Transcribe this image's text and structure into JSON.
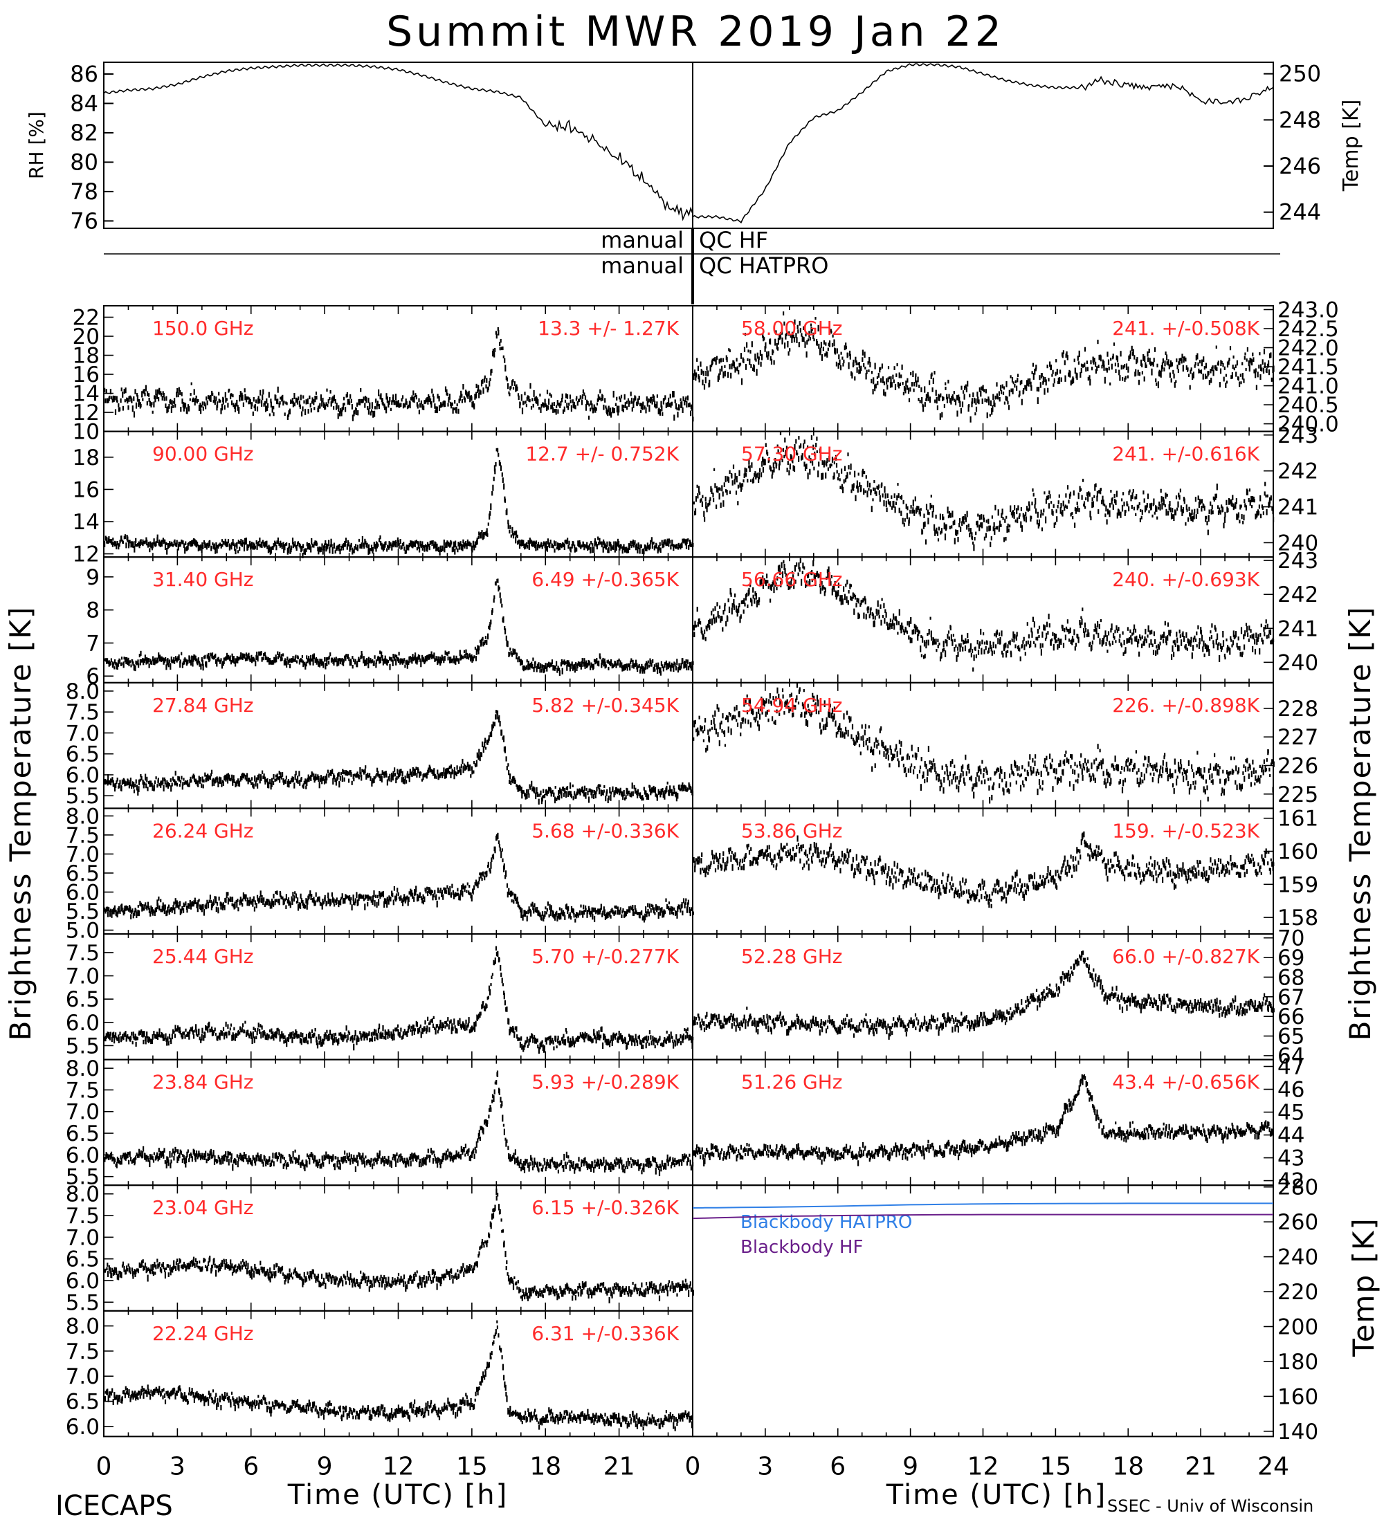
{
  "title": "Summit MWR 2019 Jan 22",
  "footer": {
    "left": "ICECAPS",
    "right": "SSEC - Univ of Wisconsin",
    "xlabel": "Time (UTC) [h]"
  },
  "colors": {
    "ink": "#000000",
    "annotation": "#ff2a2a",
    "hatpro": "#2f7fe6",
    "hf": "#6a1f8a"
  },
  "top_panel": {
    "left_ylabel": "RH [%]",
    "right_ylabel": "Temp [K]",
    "left_ticks": [
      76,
      78,
      80,
      82,
      84,
      86
    ],
    "right_ticks": [
      244,
      246,
      248,
      250
    ],
    "left_ylim": [
      75.5,
      86.8
    ],
    "right_ylim": [
      243.3,
      250.5
    ]
  },
  "qc_rows": [
    {
      "left": "manual",
      "right": "QC HF"
    },
    {
      "left": "manual",
      "right": "QC HATPRO"
    }
  ],
  "side_labels": {
    "left": "Brightness Temperature [K]",
    "right": "Brightness Temperature [K]",
    "bottom_right": "Temp [K]"
  },
  "chart_data": [
    {
      "type": "line",
      "title": "",
      "xlabel": "",
      "x_hours": [
        0,
        1,
        2,
        3,
        4,
        5,
        6,
        7,
        8,
        9,
        10,
        11,
        12,
        13,
        14,
        15,
        16,
        17,
        18,
        19,
        20,
        21,
        22,
        23,
        24
      ],
      "series": [
        {
          "name": "RH [%]",
          "axis": "left",
          "values": [
            84.7,
            84.9,
            85.0,
            85.3,
            85.8,
            86.2,
            86.4,
            86.5,
            86.6,
            86.6,
            86.6,
            86.5,
            86.3,
            85.9,
            85.4,
            85.0,
            84.8,
            84.4,
            82.5,
            82.4,
            81.5,
            80.2,
            78.8,
            77.0,
            76.6
          ]
        },
        {
          "name": "Temp [K]",
          "axis": "right",
          "values": [
            243.8,
            243.8,
            243.6,
            245.0,
            247.0,
            248.1,
            248.4,
            249.2,
            250.1,
            250.4,
            250.4,
            250.3,
            250.0,
            249.7,
            249.5,
            249.4,
            249.4,
            249.7,
            249.5,
            249.4,
            249.5,
            248.9,
            248.7,
            249.0,
            249.4
          ]
        }
      ]
    },
    {
      "type": "scatter",
      "label": "150.0 GHz",
      "stat": "13.3 +/-  1.27K",
      "ticks": [
        10,
        12,
        14,
        16,
        18,
        20,
        22
      ],
      "ylim": [
        10,
        23.2
      ],
      "x_hours": [
        0,
        2,
        4,
        6,
        8,
        10,
        12,
        14,
        15,
        15.6,
        16.0,
        16.2,
        16.5,
        17,
        18,
        20,
        22,
        24
      ],
      "values": [
        13.5,
        13.4,
        13.3,
        13.2,
        13.0,
        13.0,
        13.1,
        13.2,
        13.5,
        15.0,
        20.0,
        19.0,
        14.5,
        13.5,
        13.0,
        13.0,
        13.0,
        13.0
      ],
      "noise": 0.9
    },
    {
      "type": "scatter",
      "label": "90.00 GHz",
      "stat": "12.7 +/- 0.752K",
      "ticks": [
        12,
        14,
        16,
        18
      ],
      "ylim": [
        11.8,
        19.6
      ],
      "x_hours": [
        0,
        2,
        4,
        6,
        8,
        10,
        12,
        14,
        15,
        15.6,
        16.0,
        16.2,
        16.5,
        17,
        18,
        20,
        22,
        24
      ],
      "values": [
        12.8,
        12.7,
        12.6,
        12.6,
        12.5,
        12.5,
        12.6,
        12.5,
        12.7,
        13.5,
        18.5,
        17.0,
        13.5,
        12.7,
        12.6,
        12.6,
        12.5,
        12.7
      ],
      "noise": 0.25
    },
    {
      "type": "scatter",
      "label": "31.40 GHz",
      "stat": "6.49 +/-0.365K",
      "ticks": [
        6,
        7,
        8,
        9
      ],
      "ylim": [
        5.8,
        9.6
      ],
      "x_hours": [
        0,
        2,
        4,
        6,
        8,
        10,
        12,
        14,
        15,
        15.6,
        16.0,
        16.2,
        16.5,
        17,
        18,
        20,
        22,
        24
      ],
      "values": [
        6.4,
        6.5,
        6.5,
        6.6,
        6.5,
        6.5,
        6.5,
        6.6,
        6.6,
        7.2,
        9.0,
        8.0,
        6.8,
        6.4,
        6.3,
        6.4,
        6.3,
        6.4
      ],
      "noise": 0.12
    },
    {
      "type": "scatter",
      "label": "27.84 GHz",
      "stat": "5.82 +/-0.345K",
      "ticks": [
        5.5,
        6.0,
        6.5,
        7.0,
        7.5,
        8.0
      ],
      "tick_labels": [
        "5.5",
        "6.0",
        "6.5",
        "7.0",
        "7.5",
        "8.0"
      ],
      "ylim": [
        5.2,
        8.2
      ],
      "x_hours": [
        0,
        2,
        4,
        6,
        8,
        10,
        12,
        14,
        15,
        15.6,
        16.0,
        16.2,
        16.5,
        17,
        18,
        20,
        22,
        24
      ],
      "values": [
        5.8,
        5.8,
        5.9,
        5.9,
        5.9,
        6.0,
        6.0,
        6.1,
        6.2,
        6.8,
        7.5,
        7.0,
        6.0,
        5.6,
        5.6,
        5.6,
        5.6,
        5.7
      ],
      "noise": 0.12
    },
    {
      "type": "scatter",
      "label": "26.24 GHz",
      "stat": "5.68 +/-0.336K",
      "ticks": [
        5.0,
        5.5,
        6.0,
        6.5,
        7.0,
        7.5,
        8.0
      ],
      "tick_labels": [
        "5.0",
        "5.5",
        "6.0",
        "6.5",
        "7.0",
        "7.5",
        "8.0"
      ],
      "ylim": [
        4.9,
        8.2
      ],
      "x_hours": [
        0,
        2,
        4,
        6,
        8,
        10,
        12,
        14,
        15,
        15.6,
        16.0,
        16.2,
        16.5,
        17,
        18,
        20,
        22,
        24
      ],
      "values": [
        5.5,
        5.6,
        5.7,
        5.8,
        5.8,
        5.8,
        5.9,
        6.0,
        6.1,
        6.6,
        7.4,
        7.0,
        6.0,
        5.5,
        5.5,
        5.5,
        5.5,
        5.6
      ],
      "noise": 0.14
    },
    {
      "type": "scatter",
      "label": "25.44 GHz",
      "stat": "5.70 +/-0.277K",
      "ticks": [
        5.5,
        6.0,
        6.5,
        7.0,
        7.5
      ],
      "tick_labels": [
        "5.5",
        "6.0",
        "6.5",
        "7.0",
        "7.5"
      ],
      "ylim": [
        5.2,
        7.9
      ],
      "x_hours": [
        0,
        2,
        4,
        6,
        8,
        10,
        12,
        14,
        15,
        15.6,
        16.0,
        16.2,
        16.5,
        17,
        18,
        20,
        22,
        24
      ],
      "values": [
        5.7,
        5.7,
        5.8,
        5.8,
        5.7,
        5.7,
        5.8,
        6.0,
        5.9,
        6.5,
        7.6,
        7.0,
        5.9,
        5.6,
        5.6,
        5.7,
        5.6,
        5.7
      ],
      "noise": 0.11
    },
    {
      "type": "scatter",
      "label": "23.84 GHz",
      "stat": "5.93 +/-0.289K",
      "ticks": [
        5.5,
        6.0,
        6.5,
        7.0,
        7.5,
        8.0
      ],
      "tick_labels": [
        "5.5",
        "6.0",
        "6.5",
        "7.0",
        "7.5",
        "8.0"
      ],
      "ylim": [
        5.3,
        8.2
      ],
      "x_hours": [
        0,
        2,
        4,
        6,
        8,
        10,
        12,
        14,
        15,
        15.6,
        16.0,
        16.2,
        16.5,
        17,
        18,
        20,
        22,
        24
      ],
      "values": [
        5.9,
        6.0,
        6.0,
        5.9,
        5.9,
        5.9,
        5.9,
        6.0,
        6.1,
        6.8,
        7.8,
        7.0,
        6.0,
        5.8,
        5.8,
        5.8,
        5.8,
        5.9
      ],
      "noise": 0.12
    },
    {
      "type": "scatter",
      "label": "23.04 GHz",
      "stat": "6.15 +/-0.326K",
      "ticks": [
        5.5,
        6.0,
        6.5,
        7.0,
        7.5,
        8.0
      ],
      "tick_labels": [
        "5.5",
        "6.0",
        "6.5",
        "7.0",
        "7.5",
        "8.0"
      ],
      "ylim": [
        5.3,
        8.2
      ],
      "x_hours": [
        0,
        2,
        4,
        6,
        8,
        10,
        12,
        14,
        15,
        15.6,
        16.0,
        16.2,
        16.5,
        17,
        18,
        20,
        22,
        24
      ],
      "values": [
        6.2,
        6.3,
        6.4,
        6.3,
        6.1,
        6.0,
        6.0,
        6.1,
        6.3,
        7.0,
        8.0,
        7.2,
        6.0,
        5.7,
        5.8,
        5.8,
        5.8,
        5.9
      ],
      "noise": 0.12
    },
    {
      "type": "scatter",
      "label": "22.24 GHz",
      "stat": "6.31 +/-0.336K",
      "ticks": [
        6.0,
        6.5,
        7.0,
        7.5,
        8.0
      ],
      "tick_labels": [
        "6.0",
        "6.5",
        "7.0",
        "7.5",
        "8.0"
      ],
      "ylim": [
        5.8,
        8.3
      ],
      "x_hours": [
        0,
        2,
        4,
        6,
        8,
        10,
        12,
        14,
        15,
        15.6,
        16.0,
        16.2,
        16.5,
        17,
        18,
        20,
        22,
        24
      ],
      "values": [
        6.6,
        6.7,
        6.6,
        6.5,
        6.4,
        6.3,
        6.3,
        6.4,
        6.5,
        7.2,
        8.0,
        7.3,
        6.3,
        6.2,
        6.2,
        6.2,
        6.1,
        6.2
      ],
      "noise": 0.1
    },
    {
      "type": "scatter",
      "label": "58.00 GHz",
      "stat": "241. +/-0.508K",
      "ticks": [
        240.0,
        240.5,
        241.0,
        241.5,
        242.0,
        242.5,
        243.0
      ],
      "tick_labels": [
        "240.0",
        "240.5",
        "241.0",
        "241.5",
        "242.0",
        "242.5",
        "243.0"
      ],
      "ylim": [
        239.8,
        243.1
      ],
      "x_hours": [
        0,
        2,
        4,
        5,
        6,
        8,
        10,
        12,
        14,
        16,
        18,
        20,
        22,
        24
      ],
      "values": [
        241.3,
        241.7,
        242.4,
        242.3,
        241.8,
        241.2,
        240.8,
        240.6,
        241.2,
        241.5,
        241.6,
        241.5,
        241.4,
        241.6
      ],
      "noise": 0.35
    },
    {
      "type": "scatter",
      "label": "57.30 GHz",
      "stat": "241. +/-0.616K",
      "ticks": [
        240,
        241,
        242,
        243
      ],
      "ylim": [
        239.6,
        243.1
      ],
      "x_hours": [
        0,
        2,
        4,
        5,
        6,
        8,
        10,
        12,
        14,
        16,
        18,
        20,
        22,
        24
      ],
      "values": [
        241.0,
        241.8,
        242.5,
        242.4,
        242.0,
        241.2,
        240.6,
        240.4,
        240.9,
        241.1,
        241.1,
        241.0,
        241.0,
        241.1
      ],
      "noise": 0.35
    },
    {
      "type": "scatter",
      "label": "56.66 GHz",
      "stat": "240. +/-0.693K",
      "ticks": [
        240,
        241,
        242,
        243
      ],
      "ylim": [
        239.4,
        243.1
      ],
      "x_hours": [
        0,
        2,
        4,
        5,
        6,
        8,
        10,
        12,
        14,
        16,
        18,
        20,
        22,
        24
      ],
      "values": [
        241.0,
        241.8,
        242.7,
        242.6,
        242.2,
        241.3,
        240.6,
        240.4,
        240.8,
        240.9,
        240.7,
        240.6,
        240.6,
        240.8
      ],
      "noise": 0.35
    },
    {
      "type": "scatter",
      "label": "54.94 GHz",
      "stat": "226. +/-0.898K",
      "ticks": [
        225,
        226,
        227,
        228
      ],
      "ylim": [
        224.5,
        228.9
      ],
      "x_hours": [
        0,
        2,
        4,
        5,
        6,
        8,
        10,
        12,
        14,
        16,
        18,
        20,
        22,
        24
      ],
      "values": [
        227.0,
        227.8,
        228.2,
        228.0,
        227.5,
        226.5,
        225.8,
        225.5,
        225.8,
        225.9,
        225.9,
        225.8,
        225.7,
        225.9
      ],
      "noise": 0.45
    },
    {
      "type": "scatter",
      "label": "53.86 GHz",
      "stat": "159. +/-0.523K",
      "ticks": [
        158,
        159,
        160,
        161
      ],
      "ylim": [
        157.5,
        161.3
      ],
      "x_hours": [
        0,
        2,
        4,
        6,
        8,
        10,
        12,
        14,
        15.5,
        16.2,
        17,
        18,
        20,
        22,
        24
      ],
      "values": [
        159.6,
        159.8,
        160.0,
        159.8,
        159.4,
        159.0,
        158.7,
        159.1,
        159.5,
        160.3,
        159.7,
        159.5,
        159.4,
        159.5,
        159.7
      ],
      "noise": 0.28
    },
    {
      "type": "scatter",
      "label": "52.28 GHz",
      "stat": "66.0 +/-0.827K",
      "ticks": [
        64,
        65,
        66,
        67,
        68,
        69,
        70
      ],
      "ylim": [
        63.8,
        70.2
      ],
      "x_hours": [
        0,
        2,
        4,
        6,
        8,
        10,
        12,
        13,
        14,
        15,
        15.8,
        16.2,
        16.6,
        17,
        18,
        20,
        22,
        24
      ],
      "values": [
        65.8,
        65.8,
        65.7,
        65.6,
        65.6,
        65.7,
        65.8,
        66.2,
        66.8,
        67.5,
        68.7,
        69.0,
        68.0,
        67.2,
        66.8,
        66.6,
        66.5,
        66.6
      ],
      "noise": 0.3
    },
    {
      "type": "scatter",
      "label": "51.26 GHz",
      "stat": "43.4 +/-0.656K",
      "ticks": [
        42,
        43,
        44,
        45,
        46,
        47
      ],
      "ylim": [
        41.8,
        47.3
      ],
      "x_hours": [
        0,
        2,
        4,
        6,
        8,
        10,
        12,
        13,
        14,
        15,
        15.8,
        16.2,
        16.6,
        17,
        18,
        20,
        22,
        24
      ],
      "values": [
        43.2,
        43.3,
        43.3,
        43.2,
        43.3,
        43.4,
        43.5,
        43.8,
        44.0,
        44.3,
        45.8,
        46.5,
        45.0,
        44.2,
        44.1,
        44.2,
        44.2,
        44.3
      ],
      "noise": 0.22
    },
    {
      "type": "line",
      "ylabel": "Temp [K]",
      "ticks": [
        140,
        160,
        180,
        200,
        220,
        240,
        260,
        280
      ],
      "ylim": [
        137,
        281
      ],
      "x_hours": [
        0,
        3,
        6,
        9,
        12,
        15,
        18,
        21,
        24
      ],
      "series": [
        {
          "name": "Blackbody HATPRO",
          "color_key": "hatpro",
          "values": [
            268.0,
            268.4,
            269.0,
            269.8,
            270.3,
            270.5,
            270.6,
            270.6,
            270.6
          ]
        },
        {
          "name": "Blackbody HF",
          "color_key": "hf",
          "values": [
            262.0,
            263.0,
            263.6,
            264.0,
            264.2,
            264.2,
            264.2,
            264.2,
            264.2
          ]
        }
      ]
    }
  ],
  "x_axis": {
    "ticks": [
      0,
      3,
      6,
      9,
      12,
      15,
      18,
      21
    ],
    "right_ticks": [
      0,
      3,
      6,
      9,
      12,
      15,
      18,
      21,
      24
    ],
    "xlim": [
      0,
      24
    ]
  }
}
